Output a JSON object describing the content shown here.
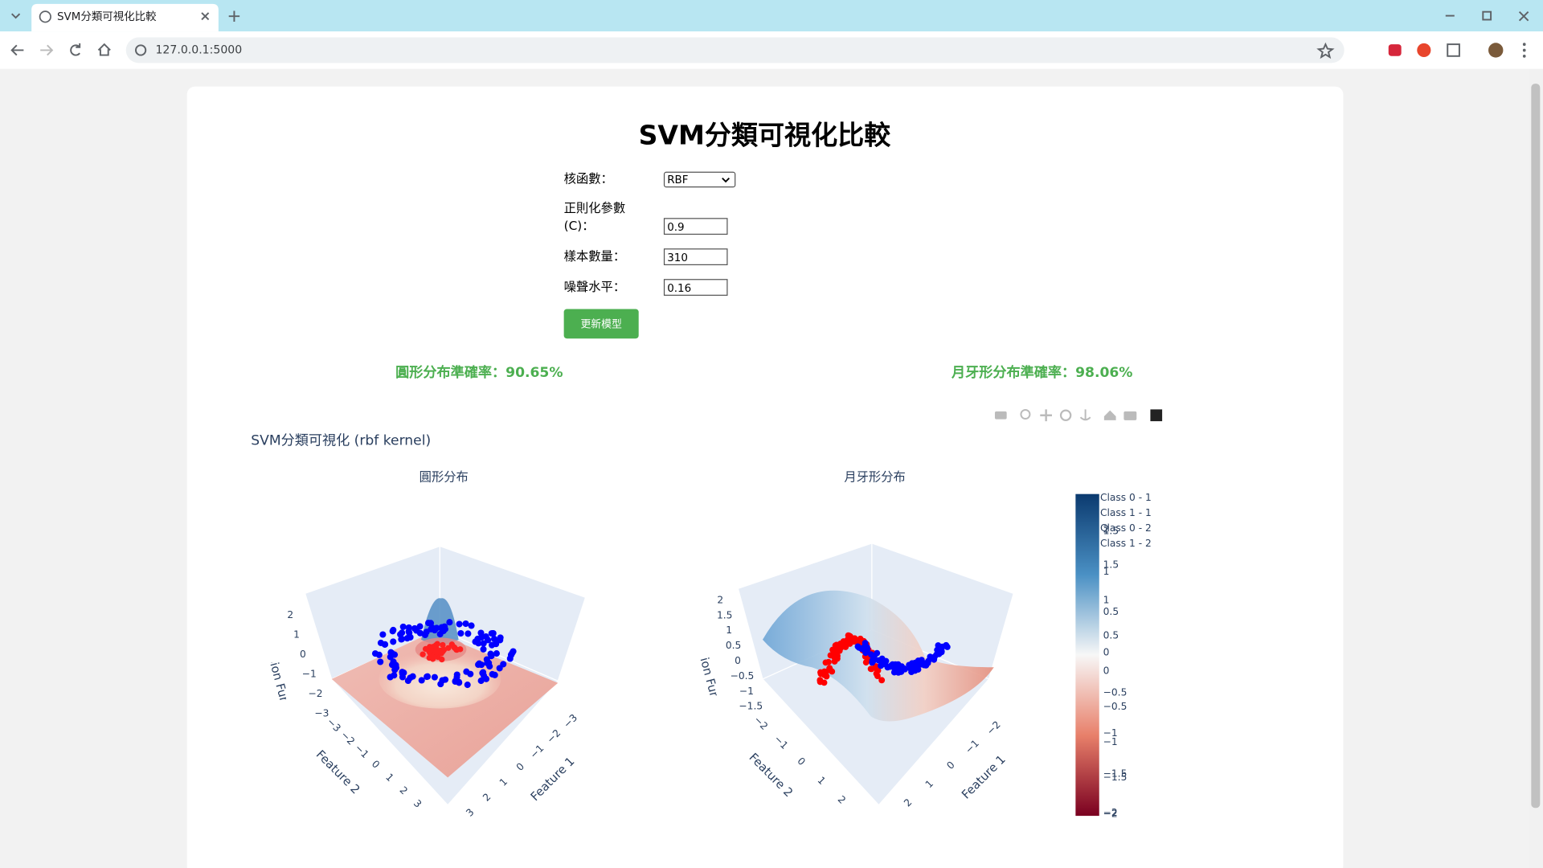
{
  "browser": {
    "tab_title": "SVM分類可視化比較",
    "url": "127.0.0.1:5000"
  },
  "page": {
    "title": "SVM分類可視化比較",
    "form": {
      "kernel_label": "核函數：",
      "kernel_value": "RBF",
      "c_label": [
        "正則化參數",
        "(C)："
      ],
      "c_value": "0.9",
      "samples_label": "樣本數量：",
      "samples_value": "310",
      "noise_label": "噪聲水平：",
      "noise_value": "0.16",
      "button": "更新模型"
    },
    "accuracy": [
      "圓形分布準確率：90.65%",
      "月牙形分布準確率：98.06%"
    ]
  },
  "plot": {
    "title": "SVM分類可視化 (rbf kernel)",
    "subplots": [
      {
        "title": "圓形分布",
        "x_label": "Feature 1",
        "y_label": "Feature 2",
        "z_label": "Decision Function",
        "zticks": [
          2,
          1,
          0,
          {
            "value": -1,
            "label": "−1"
          },
          {
            "value": -2,
            "label": "−2"
          },
          {
            "value": -3,
            "label": "−3"
          }
        ],
        "yticks": [
          {
            "value": -3,
            "label": "−3"
          },
          {
            "value": -2,
            "label": "−2"
          },
          {
            "value": -1,
            "label": "−1"
          },
          0,
          1,
          2,
          3
        ],
        "xticks": [
          3,
          2,
          1,
          0,
          {
            "value": -1,
            "label": "−1"
          },
          {
            "value": -2,
            "label": "−2"
          },
          {
            "value": -3,
            "label": "−3"
          }
        ]
      },
      {
        "title": "月牙形分布",
        "x_label": "Feature 1",
        "y_label": "Feature 2",
        "z_label": "Decision Function",
        "zticks": [
          2,
          1.5,
          1,
          0.5,
          0,
          {
            "value": -0.5,
            "label": "−0.5"
          },
          {
            "value": -1,
            "label": "−1"
          },
          {
            "value": -1.5,
            "label": "−1.5"
          }
        ],
        "yticks": [
          {
            "value": -2,
            "label": "−2"
          },
          {
            "value": -1,
            "label": "−1"
          },
          0,
          1,
          2
        ],
        "xticks": [
          2,
          1,
          0,
          {
            "value": -1,
            "label": "−1"
          },
          {
            "value": -2,
            "label": "−2"
          }
        ]
      }
    ],
    "legend": [
      "Class 0 - 1",
      "Class 1 - 1",
      "Class 0 - 2",
      "Class 1 - 2"
    ],
    "colorbars": [
      {
        "range": [
          -2.02,
          1.96
        ],
        "ticks": [
          1.5,
          1,
          0.5,
          0,
          {
            "value": -0.5,
            "label": "−0.5"
          },
          {
            "value": -1,
            "label": "−1"
          },
          {
            "value": -1.5,
            "label": "−1.5"
          },
          {
            "value": -2,
            "label": "−2"
          }
        ]
      },
      {
        "range": [
          -2.04,
          2.5
        ],
        "ticks": [
          2,
          1.5,
          1,
          0.5,
          0,
          {
            "value": -0.5,
            "label": "−0.5"
          },
          {
            "value": -1,
            "label": "−1"
          },
          {
            "value": -1.5,
            "label": "−1.5"
          },
          {
            "value": -2,
            "label": "−2"
          }
        ]
      }
    ]
  }
}
